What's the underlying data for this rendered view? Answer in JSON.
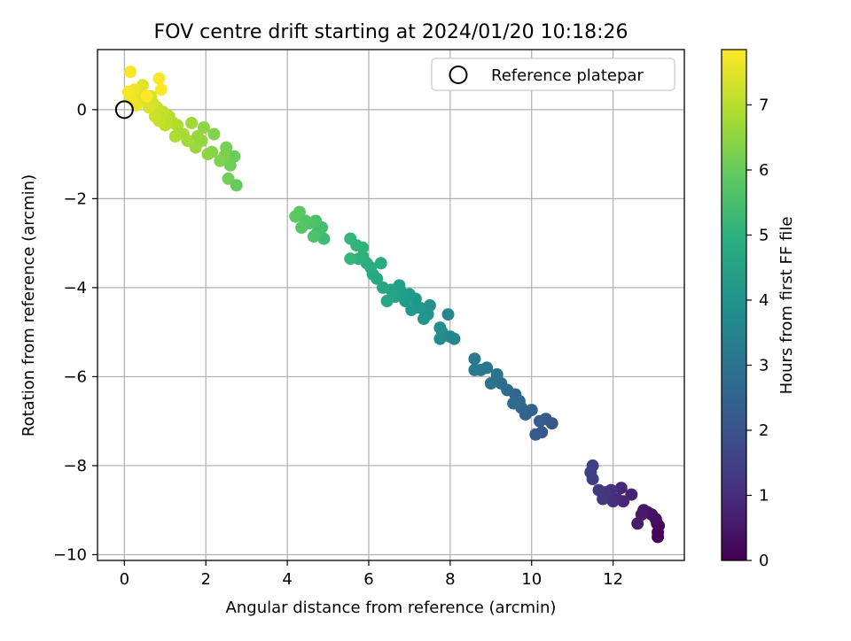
{
  "chart_data": {
    "type": "scatter",
    "title": "FOV centre drift starting at 2024/01/20 10:18:26",
    "xlabel": "Angular distance from reference (arcmin)",
    "ylabel": "Rotation from reference (arcmin)",
    "xlim": [
      -0.66,
      13.75
    ],
    "ylim": [
      -10.13,
      1.35
    ],
    "x_ticks": [
      "0",
      "2",
      "4",
      "6",
      "8",
      "10",
      "12"
    ],
    "y_ticks": [
      "0",
      "−2",
      "−4",
      "−6",
      "−8",
      "−10"
    ],
    "x_tick_values": [
      0,
      2,
      4,
      6,
      8,
      10,
      12
    ],
    "y_tick_values": [
      0,
      -2,
      -4,
      -6,
      -8,
      -10
    ],
    "grid": true,
    "legend": {
      "placement": "top-right",
      "entries": [
        "Reference platepar"
      ]
    },
    "reference_point": {
      "x": 0,
      "y": 0
    },
    "colorbar": {
      "label": "Hours from first FF file",
      "colormap": "viridis",
      "range": [
        0,
        7.85
      ],
      "ticks": [
        "0",
        "1",
        "2",
        "3",
        "4",
        "5",
        "6",
        "7"
      ],
      "tick_values": [
        0,
        1,
        2,
        3,
        4,
        5,
        6,
        7
      ]
    },
    "points": [
      [
        13.1,
        -9.6,
        0.05
      ],
      [
        13.1,
        -9.5,
        0.1
      ],
      [
        13.12,
        -9.35,
        0.15
      ],
      [
        13.08,
        -9.3,
        0.2
      ],
      [
        12.95,
        -9.1,
        0.28
      ],
      [
        13.05,
        -9.2,
        0.32
      ],
      [
        12.85,
        -9.05,
        0.4
      ],
      [
        12.75,
        -9.0,
        0.48
      ],
      [
        12.7,
        -9.1,
        0.55
      ],
      [
        12.6,
        -9.3,
        0.62
      ],
      [
        12.45,
        -8.65,
        0.75
      ],
      [
        12.25,
        -8.8,
        0.85
      ],
      [
        12.2,
        -8.5,
        0.9
      ],
      [
        12.1,
        -8.75,
        0.95
      ],
      [
        12.0,
        -8.8,
        1.05
      ],
      [
        11.95,
        -8.55,
        1.1
      ],
      [
        11.8,
        -8.6,
        1.2
      ],
      [
        11.75,
        -8.75,
        1.25
      ],
      [
        11.65,
        -8.55,
        1.3
      ],
      [
        11.5,
        -8.3,
        1.4
      ],
      [
        11.45,
        -8.15,
        1.45
      ],
      [
        11.5,
        -8.0,
        1.5
      ],
      [
        10.5,
        -7.05,
        2.1
      ],
      [
        10.35,
        -6.95,
        2.15
      ],
      [
        10.25,
        -7.25,
        2.2
      ],
      [
        10.1,
        -7.3,
        2.25
      ],
      [
        10.2,
        -7.0,
        2.3
      ],
      [
        10.0,
        -6.75,
        2.4
      ],
      [
        9.85,
        -6.85,
        2.45
      ],
      [
        9.75,
        -6.7,
        2.5
      ],
      [
        9.7,
        -6.55,
        2.6
      ],
      [
        9.6,
        -6.4,
        2.65
      ],
      [
        9.55,
        -6.6,
        2.7
      ],
      [
        9.4,
        -6.3,
        2.8
      ],
      [
        9.25,
        -6.15,
        2.9
      ],
      [
        9.15,
        -5.95,
        2.95
      ],
      [
        9.0,
        -6.15,
        3.0
      ],
      [
        8.9,
        -5.8,
        3.1
      ],
      [
        8.75,
        -5.85,
        3.15
      ],
      [
        8.6,
        -5.6,
        3.2
      ],
      [
        8.6,
        -5.85,
        3.25
      ],
      [
        8.1,
        -5.15,
        3.6
      ],
      [
        8.0,
        -5.1,
        3.65
      ],
      [
        7.95,
        -4.6,
        3.7
      ],
      [
        7.8,
        -5.0,
        3.75
      ],
      [
        7.75,
        -5.15,
        3.8
      ],
      [
        7.75,
        -4.9,
        3.85
      ],
      [
        7.5,
        -4.4,
        4.0
      ],
      [
        7.45,
        -4.6,
        4.05
      ],
      [
        7.35,
        -4.7,
        4.1
      ],
      [
        7.25,
        -4.45,
        4.15
      ],
      [
        7.15,
        -4.25,
        4.2
      ],
      [
        7.05,
        -4.5,
        4.25
      ],
      [
        7.0,
        -4.15,
        4.3
      ],
      [
        6.9,
        -4.3,
        4.35
      ],
      [
        6.8,
        -4.1,
        4.4
      ],
      [
        6.75,
        -3.95,
        4.45
      ],
      [
        6.65,
        -4.2,
        4.5
      ],
      [
        6.55,
        -4.05,
        4.55
      ],
      [
        6.45,
        -4.3,
        4.6
      ],
      [
        6.35,
        -4.0,
        4.65
      ],
      [
        6.2,
        -3.8,
        4.7
      ],
      [
        6.1,
        -3.7,
        4.75
      ],
      [
        6.3,
        -3.45,
        4.8
      ],
      [
        6.05,
        -3.55,
        4.85
      ],
      [
        5.95,
        -3.45,
        4.9
      ],
      [
        5.85,
        -3.3,
        4.95
      ],
      [
        5.75,
        -3.35,
        5.0
      ],
      [
        5.85,
        -3.1,
        5.05
      ],
      [
        5.7,
        -3.05,
        5.1
      ],
      [
        5.55,
        -2.9,
        5.15
      ],
      [
        5.55,
        -3.35,
        5.2
      ],
      [
        4.9,
        -2.9,
        5.4
      ],
      [
        4.85,
        -2.65,
        5.45
      ],
      [
        4.75,
        -2.75,
        5.5
      ],
      [
        4.7,
        -2.5,
        5.55
      ],
      [
        4.65,
        -2.85,
        5.6
      ],
      [
        4.55,
        -2.55,
        5.65
      ],
      [
        4.45,
        -2.5,
        5.7
      ],
      [
        4.35,
        -2.65,
        5.75
      ],
      [
        4.3,
        -2.3,
        5.8
      ],
      [
        4.2,
        -2.4,
        5.85
      ],
      [
        2.75,
        -1.7,
        6.0
      ],
      [
        2.7,
        -1.05,
        6.05
      ],
      [
        2.6,
        -1.25,
        6.1
      ],
      [
        2.55,
        -1.55,
        6.15
      ],
      [
        2.5,
        -0.85,
        6.2
      ],
      [
        2.45,
        -1.05,
        6.25
      ],
      [
        2.35,
        -1.15,
        6.3
      ],
      [
        2.2,
        -0.55,
        6.35
      ],
      [
        2.15,
        -0.95,
        6.4
      ],
      [
        2.05,
        -1.0,
        6.45
      ],
      [
        1.95,
        -0.4,
        6.5
      ],
      [
        1.9,
        -0.7,
        6.55
      ],
      [
        1.8,
        -0.6,
        6.6
      ],
      [
        1.75,
        -0.85,
        6.65
      ],
      [
        1.65,
        -0.3,
        6.7
      ],
      [
        1.55,
        -0.7,
        6.75
      ],
      [
        1.45,
        -0.55,
        6.8
      ],
      [
        1.3,
        -0.35,
        6.85
      ],
      [
        1.25,
        -0.6,
        6.9
      ],
      [
        1.2,
        -0.3,
        6.95
      ],
      [
        1.1,
        -0.15,
        7.0
      ],
      [
        1.0,
        -0.35,
        7.05
      ],
      [
        0.95,
        -0.05,
        7.1
      ],
      [
        0.85,
        -0.25,
        7.15
      ],
      [
        0.8,
        0.05,
        7.2
      ],
      [
        0.75,
        -0.15,
        7.25
      ],
      [
        0.7,
        0.15,
        7.3
      ],
      [
        0.65,
        0.3,
        7.35
      ],
      [
        0.6,
        0.05,
        7.4
      ],
      [
        0.5,
        0.2,
        7.45
      ],
      [
        0.45,
        0.55,
        7.5
      ],
      [
        0.35,
        0.35,
        7.55
      ],
      [
        0.3,
        0.1,
        7.6
      ],
      [
        0.25,
        0.45,
        7.65
      ],
      [
        0.15,
        0.25,
        7.7
      ],
      [
        0.1,
        0.4,
        7.75
      ],
      [
        0.15,
        0.85,
        7.8
      ],
      [
        0.85,
        0.7,
        7.82
      ],
      [
        0.9,
        0.45,
        7.84
      ],
      [
        0.55,
        0.3,
        7.83
      ]
    ]
  }
}
